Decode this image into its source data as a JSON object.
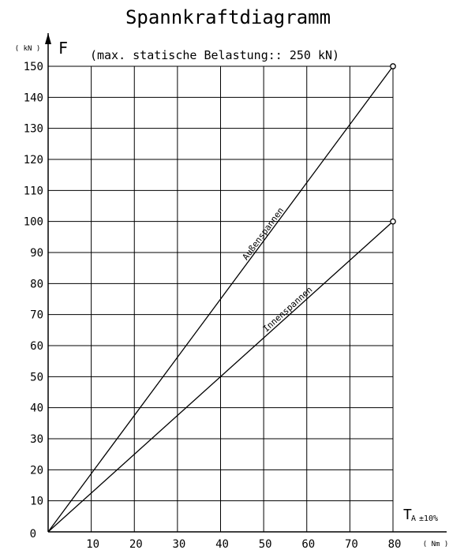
{
  "chart_data": {
    "type": "line",
    "title": "Spannkraftdiagramm",
    "subtitle": "(max. statische Belastung:: 250 kN)",
    "ylabel": "F",
    "y_unit": "( kN )",
    "xlabel": "T",
    "xlabel_sub": "A",
    "x_tolerance": "±10%",
    "x_unit": "( Nm )",
    "origin_label": "0",
    "xlim": [
      0,
      80
    ],
    "ylim": [
      0,
      150
    ],
    "x_ticks": [
      "10",
      "20",
      "30",
      "40",
      "50",
      "60",
      "70",
      "80"
    ],
    "y_ticks": [
      "10",
      "20",
      "30",
      "40",
      "50",
      "60",
      "70",
      "80",
      "90",
      "100",
      "110",
      "120",
      "130",
      "140",
      "150"
    ],
    "grid": true,
    "series": [
      {
        "name": "Außenspannen",
        "x": [
          0,
          80
        ],
        "y": [
          0,
          150
        ]
      },
      {
        "name": "Innenspannen",
        "x": [
          0,
          80
        ],
        "y": [
          0,
          100
        ]
      }
    ]
  }
}
